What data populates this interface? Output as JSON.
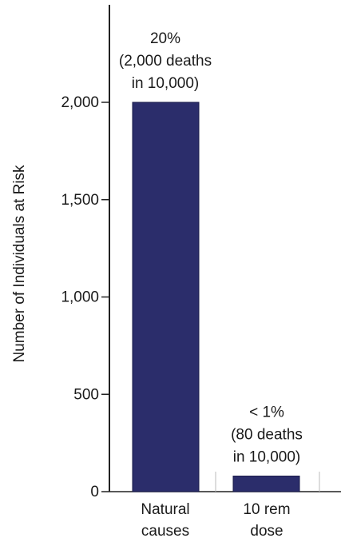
{
  "chart_data": {
    "type": "bar",
    "title": "",
    "xlabel": "",
    "ylabel": "Number of Individuals at Risk",
    "ylim": [
      0,
      2450
    ],
    "yticks": [
      0,
      500,
      1000,
      1500,
      2000
    ],
    "ytick_labels": [
      "0",
      "500",
      "1,000",
      "1,500",
      "2,000"
    ],
    "grid": false,
    "legend": "none",
    "bar_color": "#2b2d6b",
    "categories": [
      {
        "lines": [
          "Natural",
          "causes"
        ]
      },
      {
        "lines": [
          "10 rem",
          "dose"
        ]
      }
    ],
    "values": [
      2000,
      80
    ],
    "data_labels": [
      {
        "lines": [
          "20%",
          "(2,000 deaths",
          "in 10,000)"
        ]
      },
      {
        "lines": [
          "< 1%",
          "(80 deaths",
          "in 10,000)"
        ]
      }
    ]
  }
}
